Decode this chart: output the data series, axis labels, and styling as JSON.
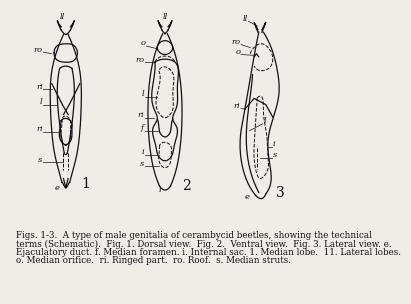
{
  "background_color": "#f0ede8",
  "caption_lines": [
    "Figs. 1-3.  A type of male genitalia of cerambycid beetles, showing the technical",
    "terms (Schematic).  Fig. 1. Dorsal view.  Fig. 2.  Ventral view.  Fig. 3. Lateral view. e.",
    "Ejaculatory duct. f. Median foramen. i. Internal sac. 1. Median lobe.  11. Lateral lobes.",
    "o. Median orifice.  ri. Ringed part.  ro. Roof.  s. Median struts."
  ],
  "label_fontsize": 9,
  "caption_fontsize": 6.3
}
